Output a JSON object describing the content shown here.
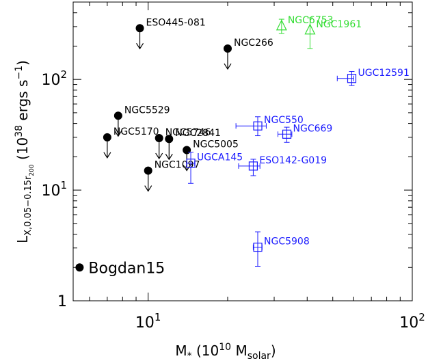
{
  "chart_data": {
    "type": "scatter",
    "x_scale": "log",
    "y_scale": "log",
    "xlim": [
      5.2,
      100
    ],
    "ylim": [
      1,
      500
    ],
    "x_ticks": [
      {
        "value": 10,
        "base": "10",
        "exp": "1"
      },
      {
        "value": 100,
        "base": "10",
        "exp": "2"
      }
    ],
    "y_ticks": [
      {
        "value": 1,
        "label": "1"
      },
      {
        "value": 10,
        "base": "10",
        "exp": "1"
      },
      {
        "value": 100,
        "base": "10",
        "exp": "2"
      }
    ],
    "x_axis_label": {
      "main": "M",
      "sub1": "*",
      "mid": "(10",
      "sup": "10",
      "unit": "M",
      "sub2": "solar",
      "close": ")"
    },
    "y_axis_label": {
      "main": "L",
      "sub": "X,0.05−0.15r",
      "subsub": "200",
      "mid": "(10",
      "sup": "38",
      "unit": "ergs s",
      "sup2": "−1",
      "close": ")"
    },
    "colors": {
      "black": "#000000",
      "blue": "#1a1aff",
      "green": "#33dd33"
    },
    "series": [
      {
        "marker": "filled-circle-upper-limit",
        "color": "#000000",
        "points": [
          {
            "label": "ESO445-081",
            "x": 9.3,
            "y": 290
          },
          {
            "label": "NGC266",
            "x": 20,
            "y": 190
          },
          {
            "label": "NGC5529",
            "x": 7.7,
            "y": 47
          },
          {
            "label": "NGC5170",
            "x": 7.0,
            "y": 30
          },
          {
            "label": "NGC5746",
            "x": 11.0,
            "y": 29.5
          },
          {
            "label": "NGC2841",
            "x": 12.0,
            "y": 29
          },
          {
            "label": "NGC5005",
            "x": 14.0,
            "y": 23
          },
          {
            "label": "NGC1097",
            "x": 10.0,
            "y": 15
          }
        ]
      },
      {
        "marker": "open-square-errorbar",
        "color": "#1a1aff",
        "points": [
          {
            "label": "UGC12591",
            "x": 59,
            "y": 102,
            "xerr": [
              52,
              60
            ],
            "yerr": [
              88,
              118
            ]
          },
          {
            "label": "NGC550",
            "x": 26,
            "y": 38,
            "xerr": [
              21.5,
              28
            ],
            "yerr": [
              31,
              46
            ]
          },
          {
            "label": "NGC669",
            "x": 33.5,
            "y": 32,
            "xerr": [
              31,
              35
            ],
            "yerr": [
              27,
              37
            ]
          },
          {
            "label": "UGCA145",
            "x": 14.5,
            "y": 17.5,
            "xerr": [
              14,
              15
            ],
            "yerr": [
              11.5,
              22
            ]
          },
          {
            "label": "ESO142-G019",
            "x": 25,
            "y": 16.5,
            "xerr": [
              22,
              26.5
            ],
            "yerr": [
              13.5,
              19
            ]
          },
          {
            "label": "NGC5908",
            "x": 26,
            "y": 3.05,
            "xerr": [
              25,
              27
            ],
            "yerr": [
              2.05,
              4.2
            ]
          }
        ]
      },
      {
        "marker": "open-triangle-errorbar",
        "color": "#33dd33",
        "points": [
          {
            "label": "NGC6753",
            "x": 32,
            "y": 305,
            "yerr": [
              260,
              350
            ]
          },
          {
            "label": "NGC1961",
            "x": 41,
            "y": 280,
            "yerr": [
              190,
              360
            ]
          }
        ]
      }
    ],
    "bogdan": {
      "label": "Bogdan15",
      "x": 5.5,
      "y": 2.0
    }
  }
}
